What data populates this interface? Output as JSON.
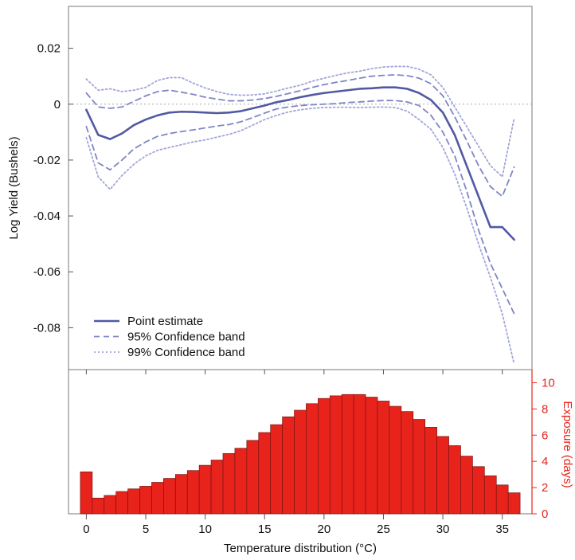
{
  "chart_data": [
    {
      "type": "line",
      "xlabel": "",
      "ylabel": "Log Yield (Bushels)",
      "xlim": [
        -1.5,
        37.5
      ],
      "ylim": [
        -0.095,
        0.035
      ],
      "yticks": [
        {
          "v": 0.02,
          "label": "0.02"
        },
        {
          "v": 0,
          "label": "0"
        },
        {
          "v": -0.02,
          "label": "-0.02"
        },
        {
          "v": -0.04,
          "label": "-0.04"
        },
        {
          "v": -0.06,
          "label": "-0.06"
        },
        {
          "v": -0.08,
          "label": "-0.08"
        }
      ],
      "reference_line_y": 0,
      "legend_position": "bottom-left",
      "series": [
        {
          "name": "Point estimate",
          "style": "solid",
          "color": "#5159a3",
          "x": [
            0,
            1,
            2,
            3,
            4,
            5,
            6,
            7,
            8,
            9,
            10,
            11,
            12,
            13,
            14,
            15,
            16,
            17,
            18,
            19,
            20,
            21,
            22,
            23,
            24,
            25,
            26,
            27,
            28,
            29,
            30,
            31,
            32,
            33,
            34,
            35,
            36
          ],
          "y": [
            -0.002,
            -0.011,
            -0.0125,
            -0.0105,
            -0.0075,
            -0.0055,
            -0.004,
            -0.003,
            -0.0027,
            -0.0028,
            -0.003,
            -0.0032,
            -0.003,
            -0.0025,
            -0.0015,
            -0.0005,
            0.0007,
            0.0015,
            0.0025,
            0.0033,
            0.004,
            0.0045,
            0.005,
            0.0055,
            0.0057,
            0.006,
            0.006,
            0.0055,
            0.004,
            0.0015,
            -0.003,
            -0.011,
            -0.022,
            -0.033,
            -0.044,
            -0.044,
            -0.0485
          ]
        },
        {
          "name": "95% Confidence band",
          "style": "dashed",
          "color": "#7f86c6",
          "x": [
            0,
            1,
            2,
            3,
            4,
            5,
            6,
            7,
            8,
            9,
            10,
            11,
            12,
            13,
            14,
            15,
            16,
            17,
            18,
            19,
            20,
            21,
            22,
            23,
            24,
            25,
            26,
            27,
            28,
            29,
            30,
            31,
            32,
            33,
            34,
            35,
            36
          ],
          "y": [
            0.004,
            -0.001,
            -0.0015,
            -0.001,
            0.001,
            0.003,
            0.0045,
            0.005,
            0.0043,
            0.0035,
            0.0025,
            0.0018,
            0.0012,
            0.0012,
            0.0015,
            0.002,
            0.0028,
            0.0038,
            0.0048,
            0.006,
            0.007,
            0.0078,
            0.0085,
            0.0093,
            0.01,
            0.0103,
            0.0105,
            0.0102,
            0.0093,
            0.0073,
            0.003,
            -0.0045,
            -0.013,
            -0.022,
            -0.0295,
            -0.033,
            -0.0225
          ],
          "y_lower": [
            -0.008,
            -0.021,
            -0.0235,
            -0.02,
            -0.016,
            -0.0135,
            -0.0115,
            -0.0105,
            -0.0098,
            -0.0092,
            -0.0085,
            -0.0078,
            -0.0073,
            -0.0063,
            -0.0048,
            -0.0032,
            -0.0017,
            -0.001,
            -0.0005,
            -0.0002,
            0,
            0.0002,
            0.0006,
            0.0008,
            0.0011,
            0.0013,
            0.0013,
            0.0008,
            -0.0005,
            -0.004,
            -0.01,
            -0.0185,
            -0.031,
            -0.045,
            -0.057,
            -0.066,
            -0.075
          ]
        },
        {
          "name": "99% Confidence band",
          "style": "dotted",
          "color": "#a2a6d8",
          "x": [
            0,
            1,
            2,
            3,
            4,
            5,
            6,
            7,
            8,
            9,
            10,
            11,
            12,
            13,
            14,
            15,
            16,
            17,
            18,
            19,
            20,
            21,
            22,
            23,
            24,
            25,
            26,
            27,
            28,
            29,
            30,
            31,
            32,
            33,
            34,
            35,
            36
          ],
          "y": [
            0.009,
            0.005,
            0.0055,
            0.0045,
            0.005,
            0.006,
            0.0085,
            0.0095,
            0.0095,
            0.0075,
            0.0058,
            0.0045,
            0.0035,
            0.0032,
            0.0033,
            0.0037,
            0.0047,
            0.0058,
            0.0068,
            0.0082,
            0.0093,
            0.0103,
            0.0112,
            0.0118,
            0.0127,
            0.0133,
            0.0135,
            0.0135,
            0.0125,
            0.0105,
            0.006,
            -0.001,
            -0.008,
            -0.015,
            -0.022,
            -0.026,
            -0.005
          ],
          "y_lower": [
            -0.012,
            -0.026,
            -0.0305,
            -0.0255,
            -0.0215,
            -0.0185,
            -0.0165,
            -0.0155,
            -0.0145,
            -0.0135,
            -0.0128,
            -0.0118,
            -0.0108,
            -0.0095,
            -0.0075,
            -0.0055,
            -0.004,
            -0.0028,
            -0.002,
            -0.0015,
            -0.0012,
            -0.0011,
            -0.0011,
            -0.0012,
            -0.0011,
            -0.001,
            -0.0012,
            -0.0025,
            -0.0055,
            -0.009,
            -0.0155,
            -0.025,
            -0.037,
            -0.05,
            -0.062,
            -0.075,
            -0.093
          ]
        }
      ]
    },
    {
      "type": "bar",
      "xlabel": "Temperature distribution (°C)",
      "ylabel": "Exposure (days)",
      "xlim": [
        -1.5,
        37.5
      ],
      "ylim": [
        0,
        11
      ],
      "xticks": [
        {
          "v": 0,
          "label": "0"
        },
        {
          "v": 5,
          "label": "5"
        },
        {
          "v": 10,
          "label": "10"
        },
        {
          "v": 15,
          "label": "15"
        },
        {
          "v": 20,
          "label": "20"
        },
        {
          "v": 25,
          "label": "25"
        },
        {
          "v": 30,
          "label": "30"
        },
        {
          "v": 35,
          "label": "35"
        }
      ],
      "yticks": [
        {
          "v": 0,
          "label": "0"
        },
        {
          "v": 2,
          "label": "2"
        },
        {
          "v": 4,
          "label": "4"
        },
        {
          "v": 6,
          "label": "6"
        },
        {
          "v": 8,
          "label": "8"
        },
        {
          "v": 10,
          "label": "10"
        }
      ],
      "bar_color": "#e8231b",
      "axis_color": "#e8231b",
      "categories": [
        0,
        1,
        2,
        3,
        4,
        5,
        6,
        7,
        8,
        9,
        10,
        11,
        12,
        13,
        14,
        15,
        16,
        17,
        18,
        19,
        20,
        21,
        22,
        23,
        24,
        25,
        26,
        27,
        28,
        29,
        30,
        31,
        32,
        33,
        34,
        35,
        36
      ],
      "values": [
        3.2,
        1.2,
        1.4,
        1.7,
        1.9,
        2.1,
        2.4,
        2.7,
        3.0,
        3.3,
        3.7,
        4.1,
        4.6,
        5.0,
        5.6,
        6.2,
        6.8,
        7.4,
        7.9,
        8.4,
        8.8,
        9.0,
        9.1,
        9.1,
        8.9,
        8.6,
        8.2,
        7.8,
        7.2,
        6.6,
        5.9,
        5.2,
        4.4,
        3.6,
        2.9,
        2.2,
        1.6
      ]
    }
  ]
}
